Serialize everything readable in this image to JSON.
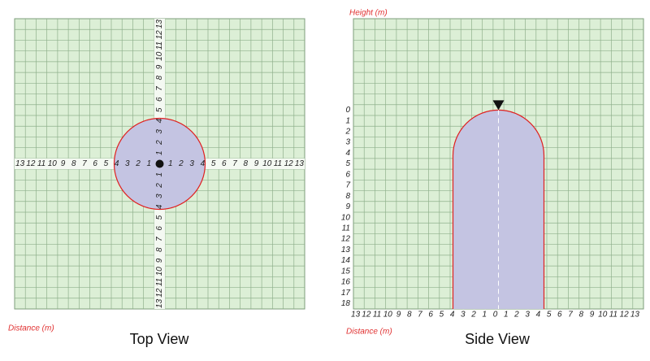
{
  "top_view": {
    "title": "Top View",
    "axis_label": "Distance (m)",
    "left_ticks": [
      13,
      12,
      11,
      10,
      9,
      8,
      7,
      6,
      5,
      4,
      3,
      2,
      1
    ],
    "right_ticks": [
      1,
      2,
      3,
      4,
      5,
      6,
      7,
      8,
      9,
      10,
      11,
      12,
      13
    ],
    "up_ticks": [
      1,
      2,
      3,
      4,
      5,
      6,
      7,
      8,
      9,
      10,
      11,
      12,
      13
    ],
    "down_ticks": [
      1,
      2,
      3,
      4,
      5,
      6,
      7,
      8,
      9,
      10,
      11,
      12,
      13
    ]
  },
  "side_view": {
    "title": "Side View",
    "x_axis_label": "Distance (m)",
    "y_axis_label": "Height (m)",
    "height_ticks": [
      0,
      1,
      2,
      3,
      4,
      5,
      6,
      7,
      8,
      9,
      10,
      11,
      12,
      13,
      14,
      15,
      16,
      17,
      18
    ],
    "distance_ticks": [
      13,
      12,
      11,
      10,
      9,
      8,
      7,
      6,
      5,
      4,
      3,
      2,
      1,
      0,
      1,
      2,
      3,
      4,
      5,
      6,
      7,
      8,
      9,
      10,
      11,
      12,
      13
    ]
  }
}
